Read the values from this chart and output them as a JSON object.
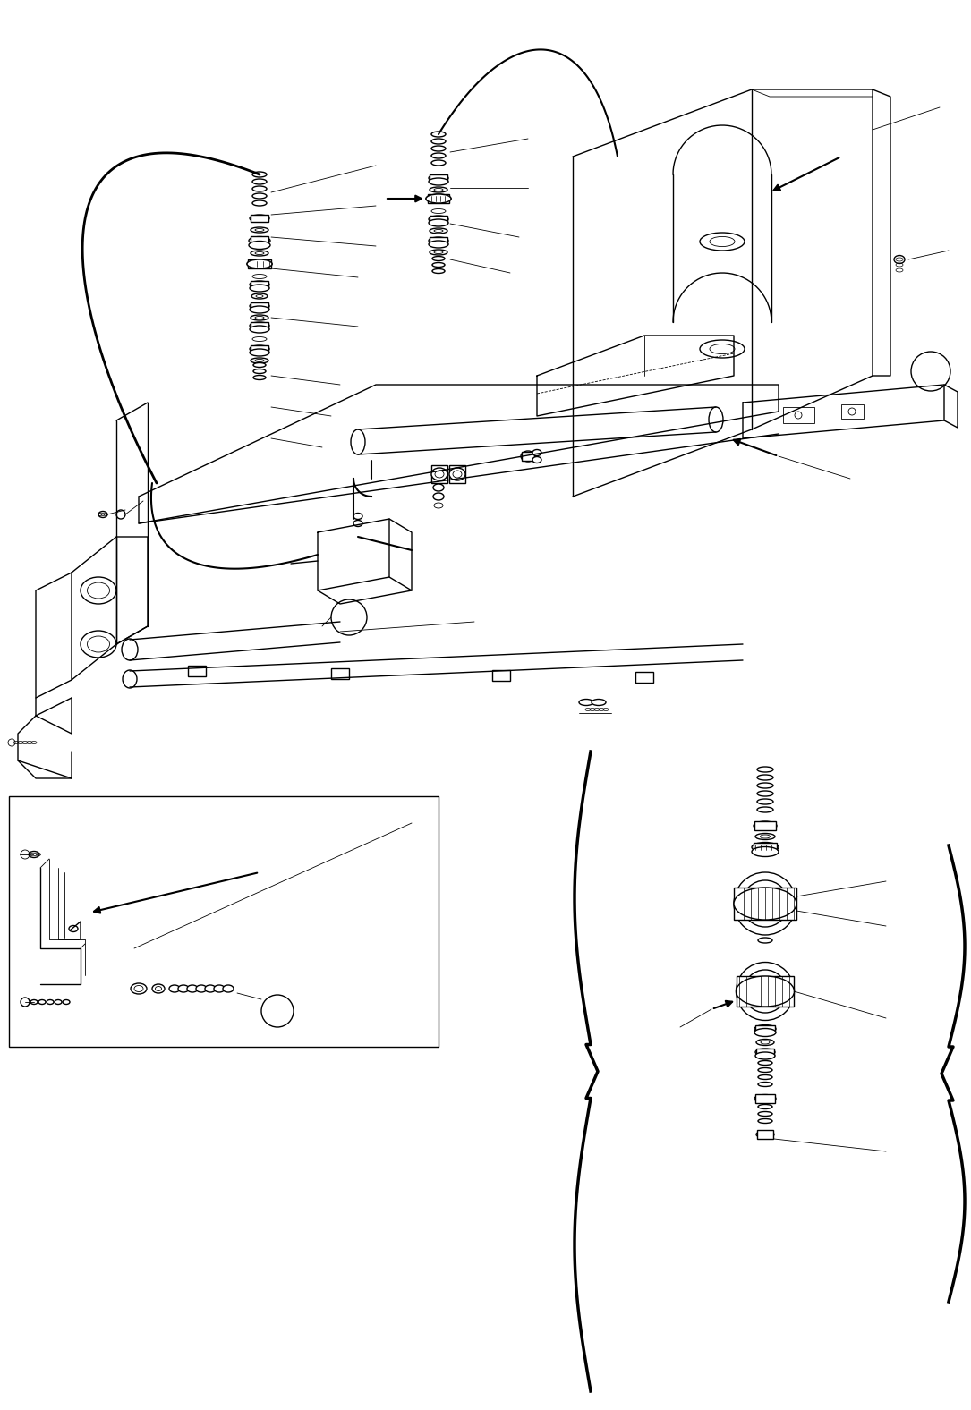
{
  "bg_color": "#ffffff",
  "lc": "#000000",
  "lw": 1.0,
  "lwt": 0.6,
  "lwk": 2.5,
  "figsize": [
    10.85,
    15.76
  ],
  "dpi": 100
}
